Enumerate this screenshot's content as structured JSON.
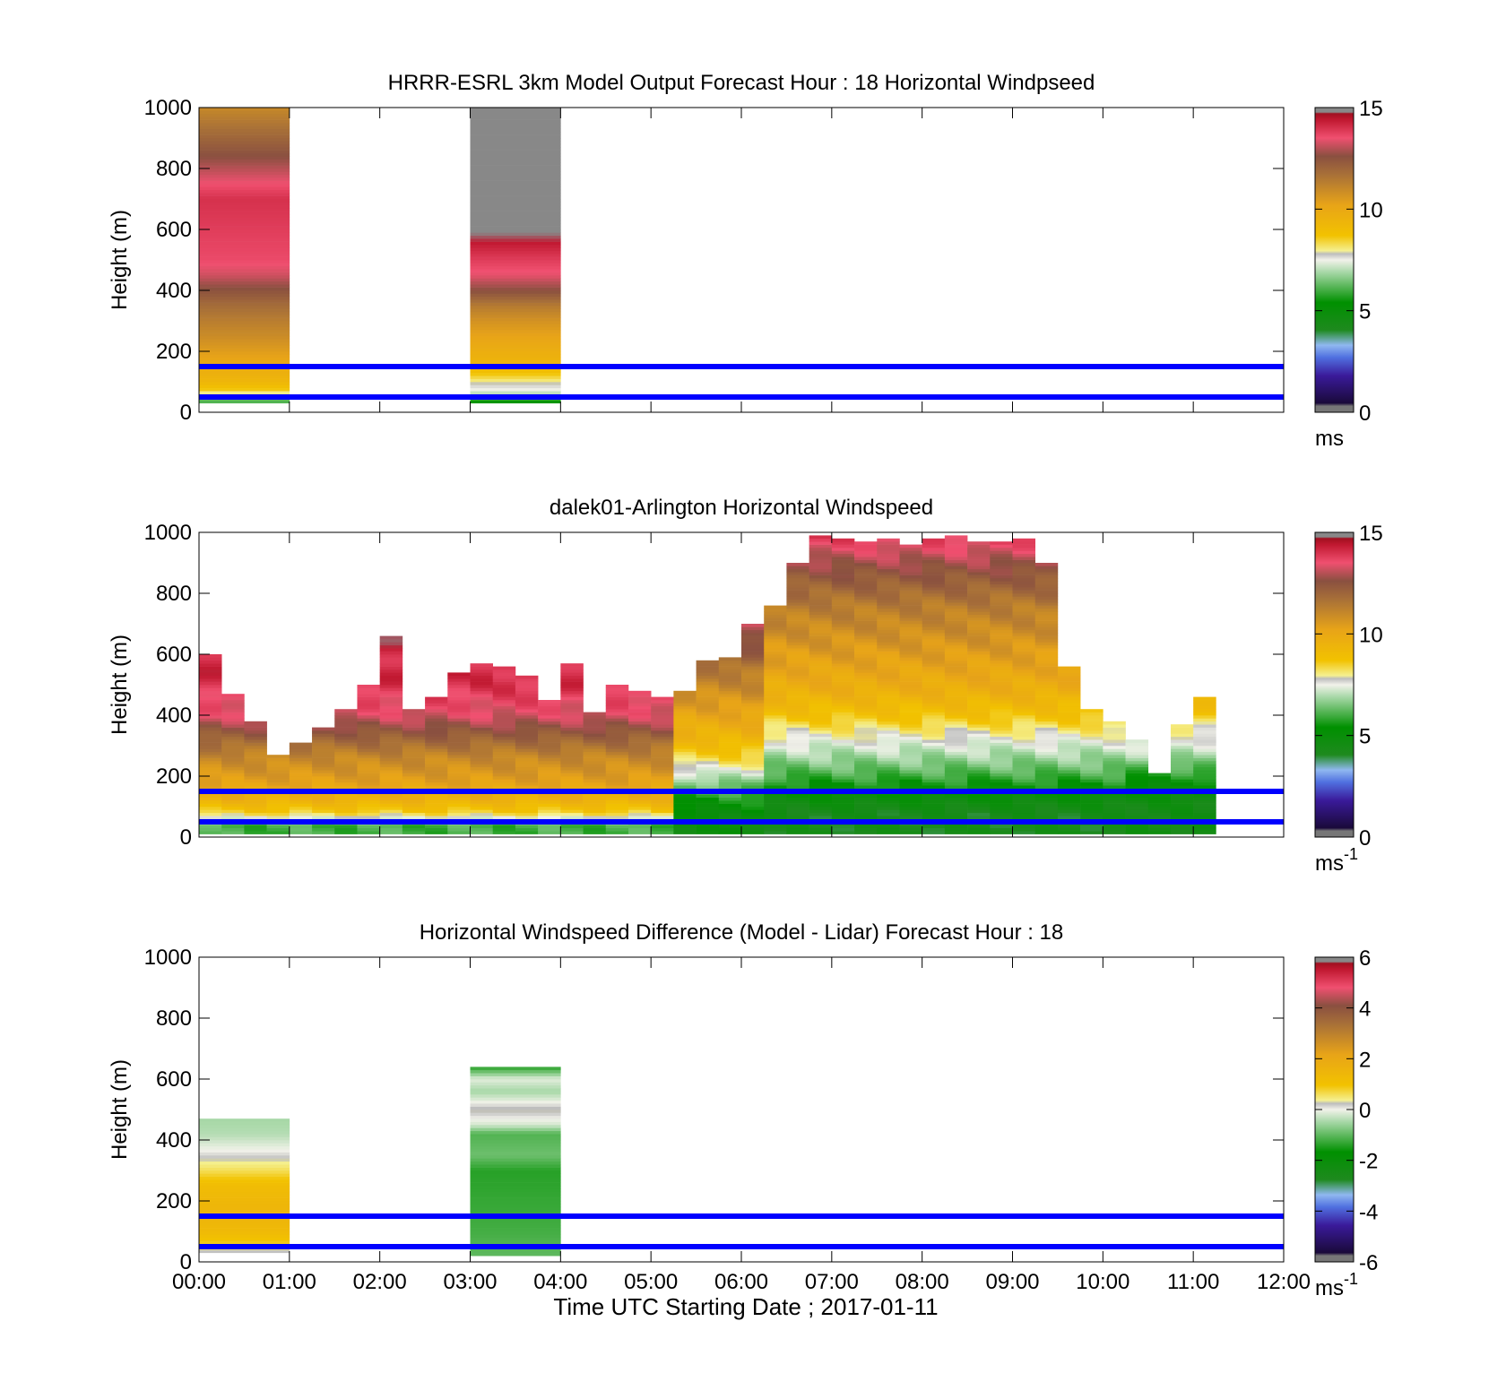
{
  "figure": {
    "xlabel": "Time UTC  Starting Date ; 2017-01-11",
    "reference_lines_m": [
      50,
      150
    ],
    "reference_line_color": "#0000ff"
  },
  "chart_data": [
    {
      "id": "model",
      "type": "heatmap",
      "title": "HRRR-ESRL 3km Model Output   Forecast Hour : 18 Horizontal Windpseed",
      "ylabel": "Height (m)",
      "xlim": [
        0,
        12
      ],
      "ylim": [
        0,
        1000
      ],
      "yticks": [
        "0",
        "200",
        "400",
        "600",
        "800",
        "1000"
      ],
      "xticks": [
        "00:00",
        "01:00",
        "02:00",
        "03:00",
        "04:00",
        "05:00",
        "06:00",
        "07:00",
        "08:00",
        "09:00",
        "10:00",
        "11:00",
        "12:00"
      ],
      "show_xticklabels": false,
      "colorbar": {
        "min": 0,
        "max": 15,
        "ticks": [
          "0",
          "5",
          "10",
          "15"
        ],
        "unit": "ms",
        "unit_sup": ""
      },
      "columns": [
        {
          "x0": 0,
          "x1": 1,
          "profile": [
            [
              30,
              6.0
            ],
            [
              50,
              6.5
            ],
            [
              70,
              8.5
            ],
            [
              100,
              9.3
            ],
            [
              130,
              9.6
            ],
            [
              160,
              10.0
            ],
            [
              200,
              10.4
            ],
            [
              250,
              10.9
            ],
            [
              300,
              11.3
            ],
            [
              350,
              11.8
            ],
            [
              400,
              12.5
            ],
            [
              450,
              13.2
            ],
            [
              500,
              13.6
            ],
            [
              700,
              14.0
            ],
            [
              800,
              13.0
            ],
            [
              900,
              12.0
            ],
            [
              1000,
              11.0
            ]
          ]
        },
        {
          "x0": 3,
          "x1": 4,
          "profile": [
            [
              30,
              5.2
            ],
            [
              50,
              6.3
            ],
            [
              70,
              7.4
            ],
            [
              90,
              7.7
            ],
            [
              120,
              8.5
            ],
            [
              150,
              9.3
            ],
            [
              200,
              9.7
            ],
            [
              250,
              10.2
            ],
            [
              300,
              10.7
            ],
            [
              350,
              11.4
            ],
            [
              400,
              12.6
            ],
            [
              450,
              13.4
            ],
            [
              500,
              13.8
            ],
            [
              550,
              14.3
            ],
            [
              600,
              14.9
            ],
            [
              1000,
              15.5
            ]
          ]
        }
      ]
    },
    {
      "id": "lidar",
      "type": "heatmap",
      "title": "dalek01-Arlington  Horizontal Windspeed",
      "ylabel": "Height (m)",
      "xlim": [
        0,
        12
      ],
      "ylim": [
        0,
        1000
      ],
      "yticks": [
        "0",
        "200",
        "400",
        "600",
        "800",
        "1000"
      ],
      "xticks": [
        "00:00",
        "01:00",
        "02:00",
        "03:00",
        "04:00",
        "05:00",
        "06:00",
        "07:00",
        "08:00",
        "09:00",
        "10:00",
        "11:00",
        "12:00"
      ],
      "show_xticklabels": false,
      "colorbar": {
        "min": 0,
        "max": 15,
        "ticks": [
          "0",
          "5",
          "10",
          "15"
        ],
        "unit": "ms",
        "unit_sup": "-1"
      },
      "column_width_h": 0.25,
      "column_tops_m": [
        600,
        470,
        380,
        270,
        310,
        360,
        420,
        500,
        660,
        420,
        460,
        540,
        570,
        560,
        530,
        450,
        570,
        410,
        500,
        480,
        460,
        480,
        580,
        590,
        700,
        760,
        900,
        990,
        980,
        970,
        980,
        960,
        980,
        990,
        970,
        970,
        980,
        900,
        560,
        420,
        380,
        320,
        210,
        370,
        460
      ],
      "profile_by_period": [
        {
          "t0": 0,
          "t1": 5.25,
          "profile": [
            [
              40,
              6
            ],
            [
              80,
              8.5
            ],
            [
              120,
              9.5
            ],
            [
              160,
              10
            ],
            [
              200,
              10.5
            ],
            [
              260,
              11
            ],
            [
              320,
              12
            ],
            [
              400,
              13.3
            ],
            [
              500,
              14
            ],
            [
              700,
              14.4
            ],
            [
              1000,
              15.5
            ]
          ]
        },
        {
          "t0": 5.25,
          "t1": 6.25,
          "profile": [
            [
              60,
              4.8
            ],
            [
              120,
              5.5
            ],
            [
              180,
              6.6
            ],
            [
              250,
              8.2
            ],
            [
              320,
              9.3
            ],
            [
              420,
              10.3
            ],
            [
              550,
              11.5
            ],
            [
              700,
              13.3
            ],
            [
              850,
              14
            ],
            [
              1000,
              15.5
            ]
          ]
        },
        {
          "t0": 6.25,
          "t1": 10.25,
          "profile": [
            [
              80,
              4.3
            ],
            [
              150,
              5.2
            ],
            [
              230,
              6.4
            ],
            [
              300,
              7.3
            ],
            [
              400,
              8.8
            ],
            [
              480,
              9.7
            ],
            [
              600,
              10.4
            ],
            [
              750,
              11.3
            ],
            [
              900,
              12.8
            ],
            [
              1000,
              14
            ]
          ]
        },
        {
          "t0": 10.25,
          "t1": 12,
          "profile": [
            [
              100,
              4.5
            ],
            [
              180,
              5.3
            ],
            [
              260,
              6.8
            ],
            [
              330,
              7.6
            ],
            [
              420,
              8.8
            ],
            [
              550,
              10
            ],
            [
              700,
              10.5
            ],
            [
              1000,
              11
            ]
          ]
        }
      ]
    },
    {
      "id": "difference",
      "type": "heatmap",
      "title": "Horizontal Windspeed Difference (Model - Lidar) Forecast Hour : 18",
      "ylabel": "Height (m)",
      "xlim": [
        0,
        12
      ],
      "ylim": [
        0,
        1000
      ],
      "yticks": [
        "0",
        "200",
        "400",
        "600",
        "800",
        "1000"
      ],
      "xticks": [
        "00:00",
        "01:00",
        "02:00",
        "03:00",
        "04:00",
        "05:00",
        "06:00",
        "07:00",
        "08:00",
        "09:00",
        "10:00",
        "11:00",
        "12:00"
      ],
      "show_xticklabels": true,
      "colorbar": {
        "min": -6,
        "max": 6,
        "ticks": [
          "-6",
          "-4",
          "-2",
          "0",
          "2",
          "4",
          "6"
        ],
        "unit": "ms",
        "unit_sup": "-1"
      },
      "columns": [
        {
          "x0": 0,
          "x1": 1,
          "profile": [
            [
              30,
              0.1
            ],
            [
              60,
              0.8
            ],
            [
              100,
              1.3
            ],
            [
              150,
              1.5
            ],
            [
              200,
              1.4
            ],
            [
              250,
              1.2
            ],
            [
              300,
              0.6
            ],
            [
              360,
              0.05
            ],
            [
              420,
              -0.4
            ],
            [
              470,
              -0.5
            ]
          ]
        },
        {
          "x0": 3,
          "x1": 4,
          "profile": [
            [
              20,
              -1.0
            ],
            [
              100,
              -1.2
            ],
            [
              200,
              -1.3
            ],
            [
              300,
              -1.4
            ],
            [
              350,
              -0.9
            ],
            [
              420,
              -1.1
            ],
            [
              450,
              -0.2
            ],
            [
              500,
              0.3
            ],
            [
              560,
              -0.5
            ],
            [
              600,
              -0.1
            ],
            [
              640,
              -1.4
            ]
          ]
        }
      ]
    }
  ]
}
